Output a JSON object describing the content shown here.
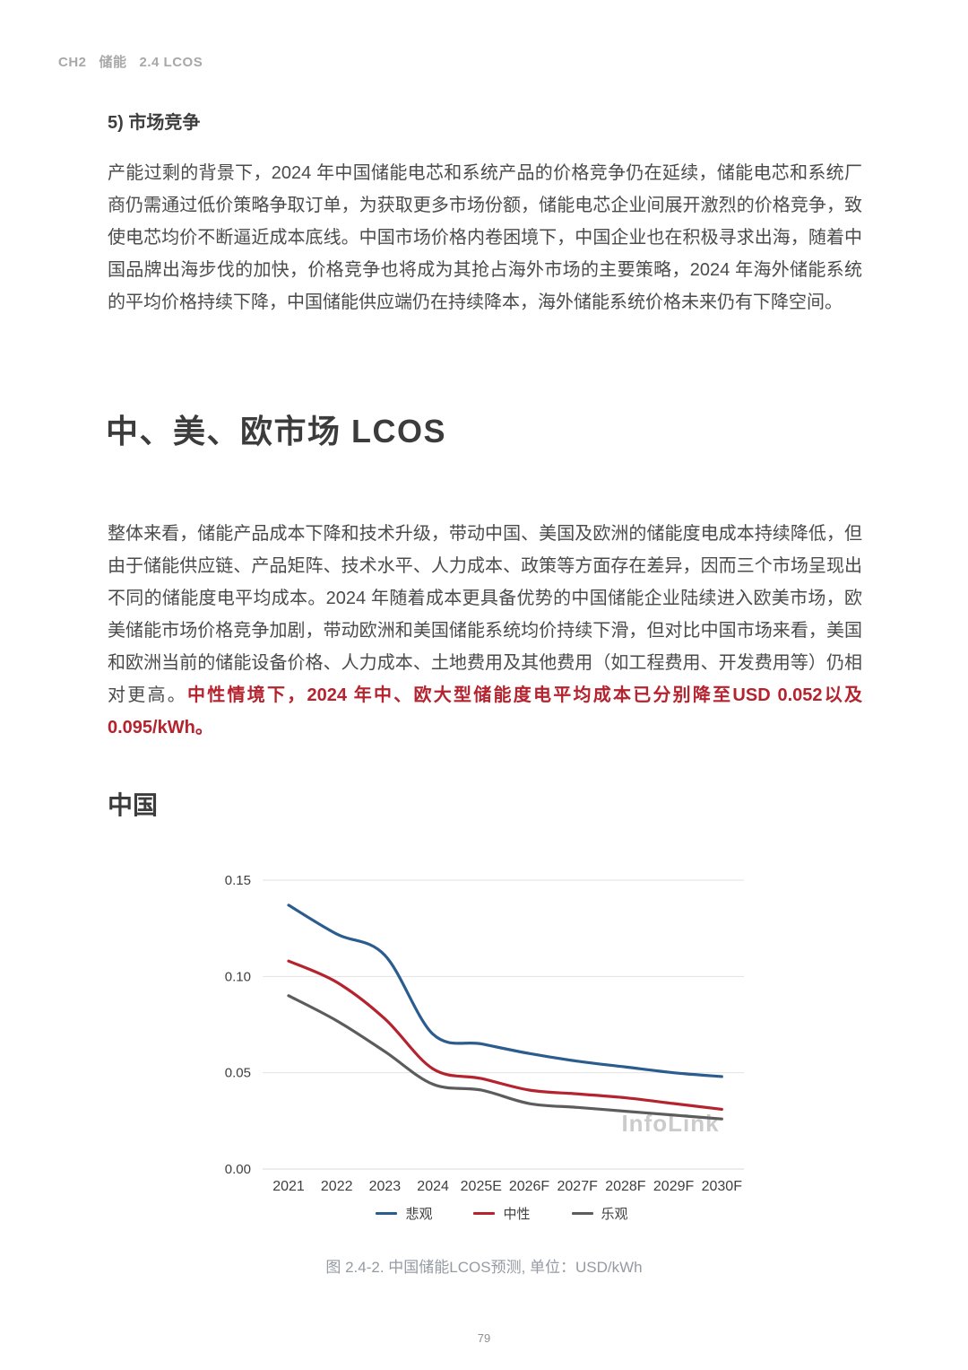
{
  "page": {
    "header_parts": [
      "CH2",
      "储能",
      "2.4 LCOS"
    ],
    "page_number": "79"
  },
  "market_competition": {
    "heading": "5) 市场竞争",
    "body": "产能过剩的背景下，2024 年中国储能电芯和系统产品的价格竞争仍在延续，储能电芯和系统厂商仍需通过低价策略争取订单，为获取更多市场份额，储能电芯企业间展开激烈的价格竞争，致使电芯均价不断逼近成本底线。中国市场价格内卷困境下，中国企业也在积极寻求出海，随着中国品牌出海步伐的加快，价格竞争也将成为其抢占海外市场的主要策略，2024 年海外储能系统的平均价格持续下降，中国储能供应端仍在持续降本，海外储能系统价格未来仍有下降空间。"
  },
  "lcos_section": {
    "heading": "中、美、欧市场 LCOS",
    "body": "整体来看，储能产品成本下降和技术升级，带动中国、美国及欧洲的储能度电成本持续降低，但由于储能供应链、产品矩阵、技术水平、人力成本、政策等方面存在差异，因而三个市场呈现出不同的储能度电平均成本。2024 年随着成本更具备优势的中国储能企业陆续进入欧美市场，欧美储能市场价格竞争加剧，带动欧洲和美国储能系统均价持续下滑，但对比中国市场来看，美国和欧洲当前的储能设备价格、人力成本、土地费用及其他费用（如工程费用、开发费用等）仍相对更高。",
    "highlight": "中性情境下，2024 年中、欧大型储能度电平均成本已分别降至USD 0.052以及0.095/kWh。",
    "highlight_color": "#B4232E"
  },
  "china_section": {
    "heading": "中国"
  },
  "watermark": "InfoLink",
  "chart_caption": "图 2.4-2. 中国储能LCOS预测, 单位：USD/kWh",
  "chart_data": {
    "type": "line",
    "title": "中国储能LCOS预测",
    "unit": "USD/kWh",
    "categories": [
      "2021",
      "2022",
      "2023",
      "2024",
      "2025E",
      "2026F",
      "2027F",
      "2028F",
      "2029F",
      "2030F"
    ],
    "series": [
      {
        "name": "悲观",
        "color": "#2B5C8E",
        "values": [
          0.137,
          0.122,
          0.111,
          0.07,
          0.065,
          0.06,
          0.056,
          0.053,
          0.05,
          0.048
        ]
      },
      {
        "name": "中性",
        "color": "#B4232E",
        "values": [
          0.108,
          0.097,
          0.078,
          0.052,
          0.047,
          0.041,
          0.039,
          0.037,
          0.034,
          0.031
        ]
      },
      {
        "name": "乐观",
        "color": "#5C5C5C",
        "values": [
          0.09,
          0.077,
          0.061,
          0.044,
          0.041,
          0.034,
          0.032,
          0.03,
          0.028,
          0.026
        ]
      }
    ],
    "ylim": [
      0,
      0.15
    ],
    "yticks": [
      0,
      0.05,
      0.1,
      0.15
    ],
    "grid": true,
    "legend_position": "bottom",
    "gridline_color": "#E2E2E2",
    "axis_line_color": "#D8D8D8",
    "tick_label_color": "#3F3F3F",
    "watermark_color": "#CBCBCB"
  }
}
